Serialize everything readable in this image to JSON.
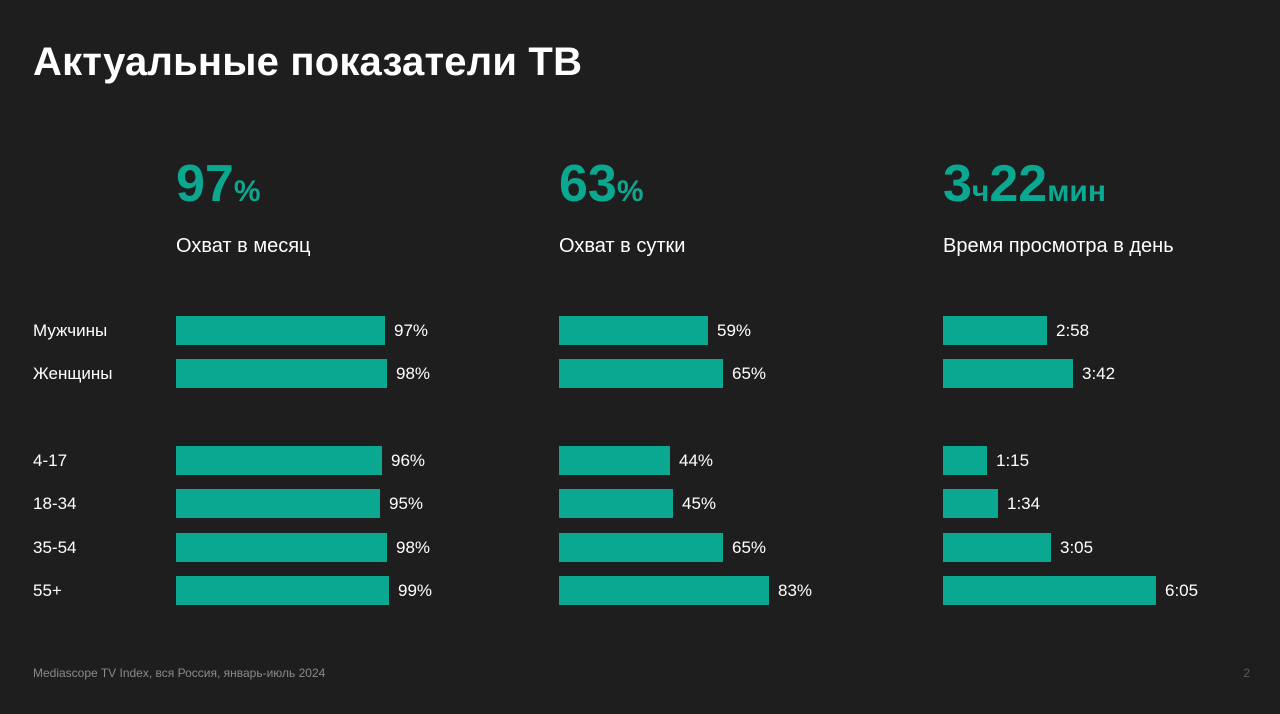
{
  "title": "Актуальные показатели ТВ",
  "kpis": [
    {
      "value_parts": [
        {
          "text": "97",
          "size": "big"
        },
        {
          "text": "%",
          "size": "small"
        }
      ],
      "label": "Охват в месяц"
    },
    {
      "value_parts": [
        {
          "text": "63",
          "size": "big"
        },
        {
          "text": "%",
          "size": "small"
        }
      ],
      "label": "Охват в сутки"
    },
    {
      "value_parts": [
        {
          "text": "3",
          "size": "big"
        },
        {
          "text": "ч",
          "size": "small"
        },
        {
          "text": "22",
          "size": "big"
        },
        {
          "text": "мин",
          "size": "small"
        }
      ],
      "label": "Время просмотра в день"
    }
  ],
  "row_labels": [
    "Мужчины",
    "Женщины",
    "4-17",
    "18-34",
    "35-54",
    "55+"
  ],
  "footer": "Mediascope TV Index, вся Россия, январь-июль 2024",
  "page_number": "2",
  "colors": {
    "accent": "#0aa891",
    "background": "#1e1e1e"
  },
  "chart_data": [
    {
      "type": "bar",
      "title": "Охват в месяц",
      "categories": [
        "Мужчины",
        "Женщины",
        "4-17",
        "18-34",
        "35-54",
        "55+"
      ],
      "values": [
        97,
        98,
        96,
        95,
        98,
        99
      ],
      "value_labels": [
        "97%",
        "98%",
        "96%",
        "95%",
        "98%",
        "99%"
      ],
      "unit": "%"
    },
    {
      "type": "bar",
      "title": "Охват в сутки",
      "categories": [
        "Мужчины",
        "Женщины",
        "4-17",
        "18-34",
        "35-54",
        "55+"
      ],
      "values": [
        59,
        65,
        44,
        45,
        65,
        83
      ],
      "value_labels": [
        "59%",
        "65%",
        "44%",
        "45%",
        "65%",
        "83%"
      ],
      "unit": "%"
    },
    {
      "type": "bar",
      "title": "Время просмотра в день",
      "categories": [
        "Мужчины",
        "Женщины",
        "4-17",
        "18-34",
        "35-54",
        "55+"
      ],
      "values": [
        178,
        222,
        75,
        94,
        185,
        365
      ],
      "value_labels": [
        "2:58",
        "3:42",
        "1:15",
        "1:34",
        "3:05",
        "6:05"
      ],
      "unit": "min"
    }
  ]
}
